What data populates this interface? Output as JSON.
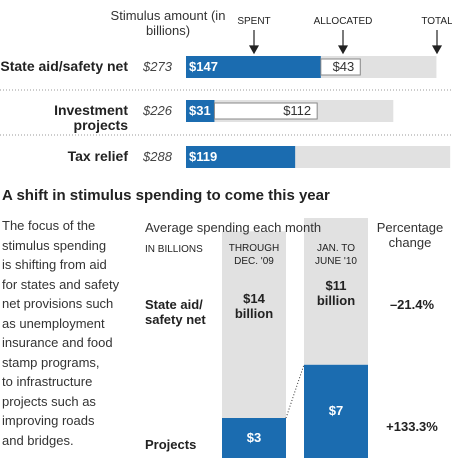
{
  "chart_data": [
    {
      "type": "hbar",
      "axis_label": "Stimulus amount (in billions)",
      "categories": [
        "State aid/safety net",
        "Investment projects",
        "Tax relief"
      ],
      "xlim": [
        0,
        290
      ],
      "series": [
        {
          "name": "TOTAL",
          "color": "#e1e1e1",
          "values": [
            273,
            226,
            288
          ],
          "value_labels": [
            "$273",
            "$226",
            "$288"
          ]
        },
        {
          "name": "SPENT",
          "color": "#1b6cb0",
          "values": [
            147,
            31,
            119
          ],
          "value_labels": [
            "$147",
            "$31",
            "$119"
          ]
        },
        {
          "name": "ALLOCATED",
          "color": "#ffffff",
          "values": [
            43,
            112,
            null
          ],
          "value_labels": [
            "$43",
            "$112",
            null
          ]
        }
      ]
    },
    {
      "type": "column",
      "title": "A shift in stimulus spending to come this year",
      "description": [
        "The focus of the",
        "stimulus spending",
        "is shifting from aid",
        "for states and safety",
        "net provisions such",
        "as unemployment",
        "insurance and food",
        "stamp programs,",
        "to infrastructure",
        "projects such as",
        "improving roads",
        "and bridges."
      ],
      "subtitle": "Average spending each month",
      "unit_label": "IN BILLIONS",
      "change_header": "Percentage change",
      "categories": [
        "THROUGH DEC. '09",
        "JAN. TO JUNE '10"
      ],
      "ylim": [
        0,
        18
      ],
      "series": [
        {
          "name": "Projects",
          "color": "#1b6cb0",
          "values": [
            3,
            7
          ],
          "value_labels": [
            "$3",
            "$7"
          ],
          "change": {
            "value": 133.3,
            "label": "+133.3%"
          }
        },
        {
          "name": "State aid/ safety net",
          "color": "#e1e1e1",
          "values": [
            14,
            11
          ],
          "value_labels": [
            "$14 billion",
            "$11 billion"
          ],
          "change": {
            "value": -21.4,
            "label": "–21.4%"
          }
        }
      ]
    }
  ]
}
